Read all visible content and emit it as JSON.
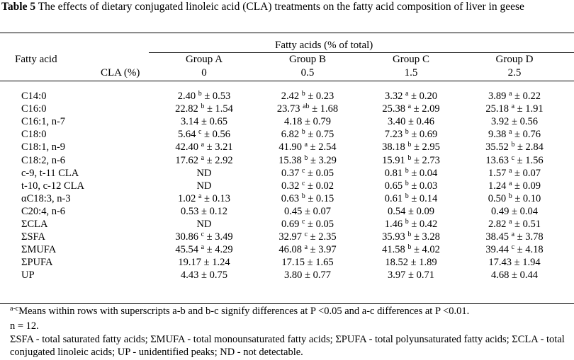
{
  "caption": {
    "label": "Table 5",
    "text": " The effects of dietary conjugated linoleic acid (CLA) treatments on the fatty acid composition of liver in geese"
  },
  "header": {
    "fatty_acid": "Fatty acid",
    "span": "Fatty acids (% of total)",
    "cla_label": "CLA (%)",
    "groups": [
      {
        "name": "Group A",
        "cla": "0"
      },
      {
        "name": "Group B",
        "cla": "0.5"
      },
      {
        "name": "Group C",
        "cla": "1.5"
      },
      {
        "name": "Group D",
        "cla": "2.5"
      }
    ]
  },
  "rows": [
    {
      "name": "C14:0",
      "cells": [
        {
          "v": "2.40",
          "s": "b",
          "e": " ± 0.53"
        },
        {
          "v": "2.42",
          "s": "b",
          "e": " ± 0.23"
        },
        {
          "v": "3.32",
          "s": "a",
          "e": " ± 0.20"
        },
        {
          "v": "3.89",
          "s": "a",
          "e": " ± 0.22"
        }
      ]
    },
    {
      "name": "C16:0",
      "cells": [
        {
          "v": "22.82",
          "s": "b",
          "e": " ± 1.54"
        },
        {
          "v": "23.73",
          "s": "ab",
          "e": " ± 1.68"
        },
        {
          "v": "25.38",
          "s": "a",
          "e": " ± 2.09"
        },
        {
          "v": "25.18",
          "s": "a",
          "e": " ± 1.91"
        }
      ]
    },
    {
      "name": "C16:1, n-7",
      "cells": [
        {
          "v": "3.14 ± 0.65",
          "s": "",
          "e": ""
        },
        {
          "v": "4.18 ± 0.79",
          "s": "",
          "e": ""
        },
        {
          "v": "3.40 ± 0.46",
          "s": "",
          "e": ""
        },
        {
          "v": "3.92 ± 0.56",
          "s": "",
          "e": ""
        }
      ]
    },
    {
      "name": "C18:0",
      "cells": [
        {
          "v": "5.64",
          "s": "c",
          "e": " ± 0.56"
        },
        {
          "v": "6.82",
          "s": "b",
          "e": " ± 0.75"
        },
        {
          "v": "7.23",
          "s": "b",
          "e": " ± 0.69"
        },
        {
          "v": "9.38",
          "s": "a",
          "e": " ± 0.76"
        }
      ]
    },
    {
      "name": "C18:1, n-9",
      "cells": [
        {
          "v": "42.40",
          "s": "a",
          "e": " ± 3.21"
        },
        {
          "v": "41.90",
          "s": "a",
          "e": " ± 2.54"
        },
        {
          "v": "38.18",
          "s": "b",
          "e": " ± 2.95"
        },
        {
          "v": "35.52",
          "s": "b",
          "e": " ± 2.84"
        }
      ]
    },
    {
      "name": "C18:2, n-6",
      "cells": [
        {
          "v": "17.62",
          "s": "a",
          "e": " ± 2.92"
        },
        {
          "v": "15.38",
          "s": "b",
          "e": " ± 3.29"
        },
        {
          "v": "15.91",
          "s": "b",
          "e": " ± 2.73"
        },
        {
          "v": "13.63",
          "s": "c",
          "e": " ± 1.56"
        }
      ]
    },
    {
      "name": "c-9, t-11 CLA",
      "cells": [
        {
          "v": "ND",
          "s": "",
          "e": ""
        },
        {
          "v": "0.37",
          "s": "c",
          "e": " ± 0.05"
        },
        {
          "v": "0.81",
          "s": "b",
          "e": " ± 0.04"
        },
        {
          "v": "1.57",
          "s": "a",
          "e": " ± 0.07"
        }
      ]
    },
    {
      "name": "t-10, c-12 CLA",
      "cells": [
        {
          "v": "ND",
          "s": "",
          "e": ""
        },
        {
          "v": "0.32",
          "s": "c",
          "e": " ± 0.02"
        },
        {
          "v": "0.65",
          "s": "b",
          "e": " ± 0.03"
        },
        {
          "v": "1.24",
          "s": "a",
          "e": " ± 0.09"
        }
      ]
    },
    {
      "name": "αC18:3, n-3",
      "cells": [
        {
          "v": "1.02",
          "s": "a",
          "e": " ± 0.13"
        },
        {
          "v": "0.63",
          "s": "b",
          "e": " ± 0.15"
        },
        {
          "v": "0.61",
          "s": "b",
          "e": " ± 0.14"
        },
        {
          "v": "0.50",
          "s": "b",
          "e": " ± 0.10"
        }
      ]
    },
    {
      "name": "C20:4, n-6",
      "cells": [
        {
          "v": "0.53 ± 0.12",
          "s": "",
          "e": ""
        },
        {
          "v": "0.45 ± 0.07",
          "s": "",
          "e": ""
        },
        {
          "v": "0.54 ± 0.09",
          "s": "",
          "e": ""
        },
        {
          "v": "0.49 ± 0.04",
          "s": "",
          "e": ""
        }
      ]
    },
    {
      "name": "ΣCLA",
      "cells": [
        {
          "v": "ND",
          "s": "",
          "e": ""
        },
        {
          "v": "0.69",
          "s": "c",
          "e": " ± 0.05"
        },
        {
          "v": "1.46",
          "s": "b",
          "e": " ± 0.42"
        },
        {
          "v": "2.82",
          "s": "a",
          "e": " ± 0.51"
        }
      ]
    },
    {
      "name": "ΣSFA",
      "cells": [
        {
          "v": "30.86",
          "s": "c",
          "e": " ± 3.49"
        },
        {
          "v": "32.97",
          "s": "c",
          "e": " ± 2.35"
        },
        {
          "v": "35.93",
          "s": "b",
          "e": " ± 3.28"
        },
        {
          "v": "38.45",
          "s": "a",
          "e": " ± 3.78"
        }
      ]
    },
    {
      "name": "ΣMUFA",
      "cells": [
        {
          "v": "45.54",
          "s": "a",
          "e": " ± 4.29"
        },
        {
          "v": "46.08",
          "s": "a",
          "e": " ± 3.97"
        },
        {
          "v": "41.58",
          "s": "b",
          "e": " ± 4.02"
        },
        {
          "v": "39.44",
          "s": "c",
          "e": " ± 4.18"
        }
      ]
    },
    {
      "name": "ΣPUFA",
      "cells": [
        {
          "v": "19.17 ± 1.24",
          "s": "",
          "e": ""
        },
        {
          "v": "17.15 ± 1.65",
          "s": "",
          "e": ""
        },
        {
          "v": "18.52 ± 1.89",
          "s": "",
          "e": ""
        },
        {
          "v": "17.43 ± 1.94",
          "s": "",
          "e": ""
        }
      ]
    },
    {
      "name": "UP",
      "cells": [
        {
          "v": "4.43 ± 0.75",
          "s": "",
          "e": ""
        },
        {
          "v": "3.80 ± 0.77",
          "s": "",
          "e": ""
        },
        {
          "v": "3.97 ± 0.71",
          "s": "",
          "e": ""
        },
        {
          "v": "4.68 ± 0.44",
          "s": "",
          "e": ""
        }
      ]
    }
  ],
  "footnotes": {
    "sig_sup": "a-c",
    "sig_text": "Means within rows with superscripts a-b and b-c signify differences at P <0.05 and a-c differences at P <0.01.",
    "n": "n = 12.",
    "abbrev": "ΣSFA - total saturated fatty acids; ΣMUFA - total monounsaturated fatty acids; ΣPUFA - total polyunsaturated fatty acids; ΣCLA - total conjugated linoleic acids; UP - unidentified peaks; ND - not detectable."
  }
}
